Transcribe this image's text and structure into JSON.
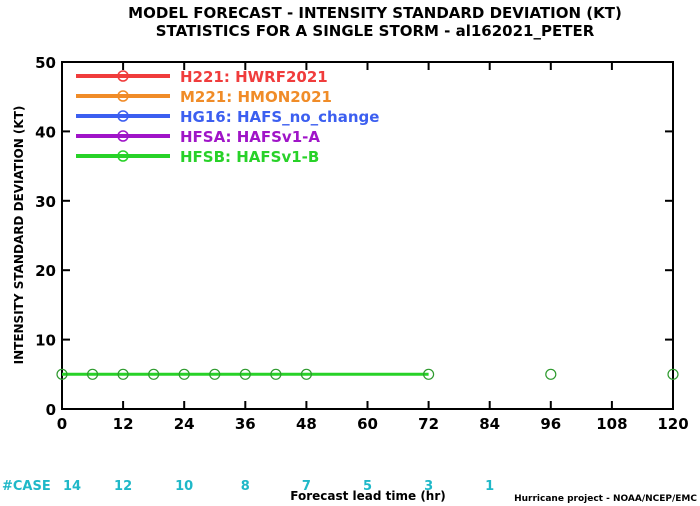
{
  "chart_data": {
    "type": "line",
    "title": "MODEL FORECAST - INTENSITY STANDARD DEVIATION (KT)",
    "subtitle": "STATISTICS FOR A SINGLE STORM - al162021_PETER",
    "xlabel": "Forecast lead time (hr)",
    "ylabel": "INTENSITY STANDARD DEVIATION (KT)",
    "xlim": [
      0,
      120
    ],
    "ylim": [
      0,
      50
    ],
    "x_ticks": [
      0,
      12,
      24,
      36,
      48,
      60,
      72,
      84,
      96,
      108,
      120
    ],
    "y_ticks": [
      0,
      10,
      20,
      30,
      40,
      50
    ],
    "grid": false,
    "legend_position": "top-left",
    "series": [
      {
        "name": "H221:  HWRF2021",
        "color": "#f03c3c",
        "x": [],
        "y": []
      },
      {
        "name": "M221:  HMON2021",
        "color": "#f08c28",
        "x": [],
        "y": []
      },
      {
        "name": "HG16:  HAFS_no_change",
        "color": "#3c5ff0",
        "x": [],
        "y": []
      },
      {
        "name": "HFSA:  HAFSv1-A",
        "color": "#a014c8",
        "x": [],
        "y": []
      },
      {
        "name": "HFSB:  HAFSv1-B",
        "color": "#28d228",
        "x": [
          0,
          6,
          12,
          18,
          24,
          30,
          36,
          42,
          48,
          72,
          96,
          120
        ],
        "y": [
          5,
          5,
          5,
          5,
          5,
          5,
          5,
          5,
          5,
          5,
          5,
          5
        ],
        "line_until": 72
      }
    ],
    "case_label": "#CASE",
    "cases": [
      {
        "x": 0,
        "n": "14"
      },
      {
        "x": 12,
        "n": "12"
      },
      {
        "x": 24,
        "n": "10"
      },
      {
        "x": 36,
        "n": "8"
      },
      {
        "x": 48,
        "n": "7"
      },
      {
        "x": 60,
        "n": "5"
      },
      {
        "x": 72,
        "n": "3"
      },
      {
        "x": 84,
        "n": "1"
      }
    ],
    "credit": "Hurricane project - NOAA/NCEP/EMC"
  }
}
